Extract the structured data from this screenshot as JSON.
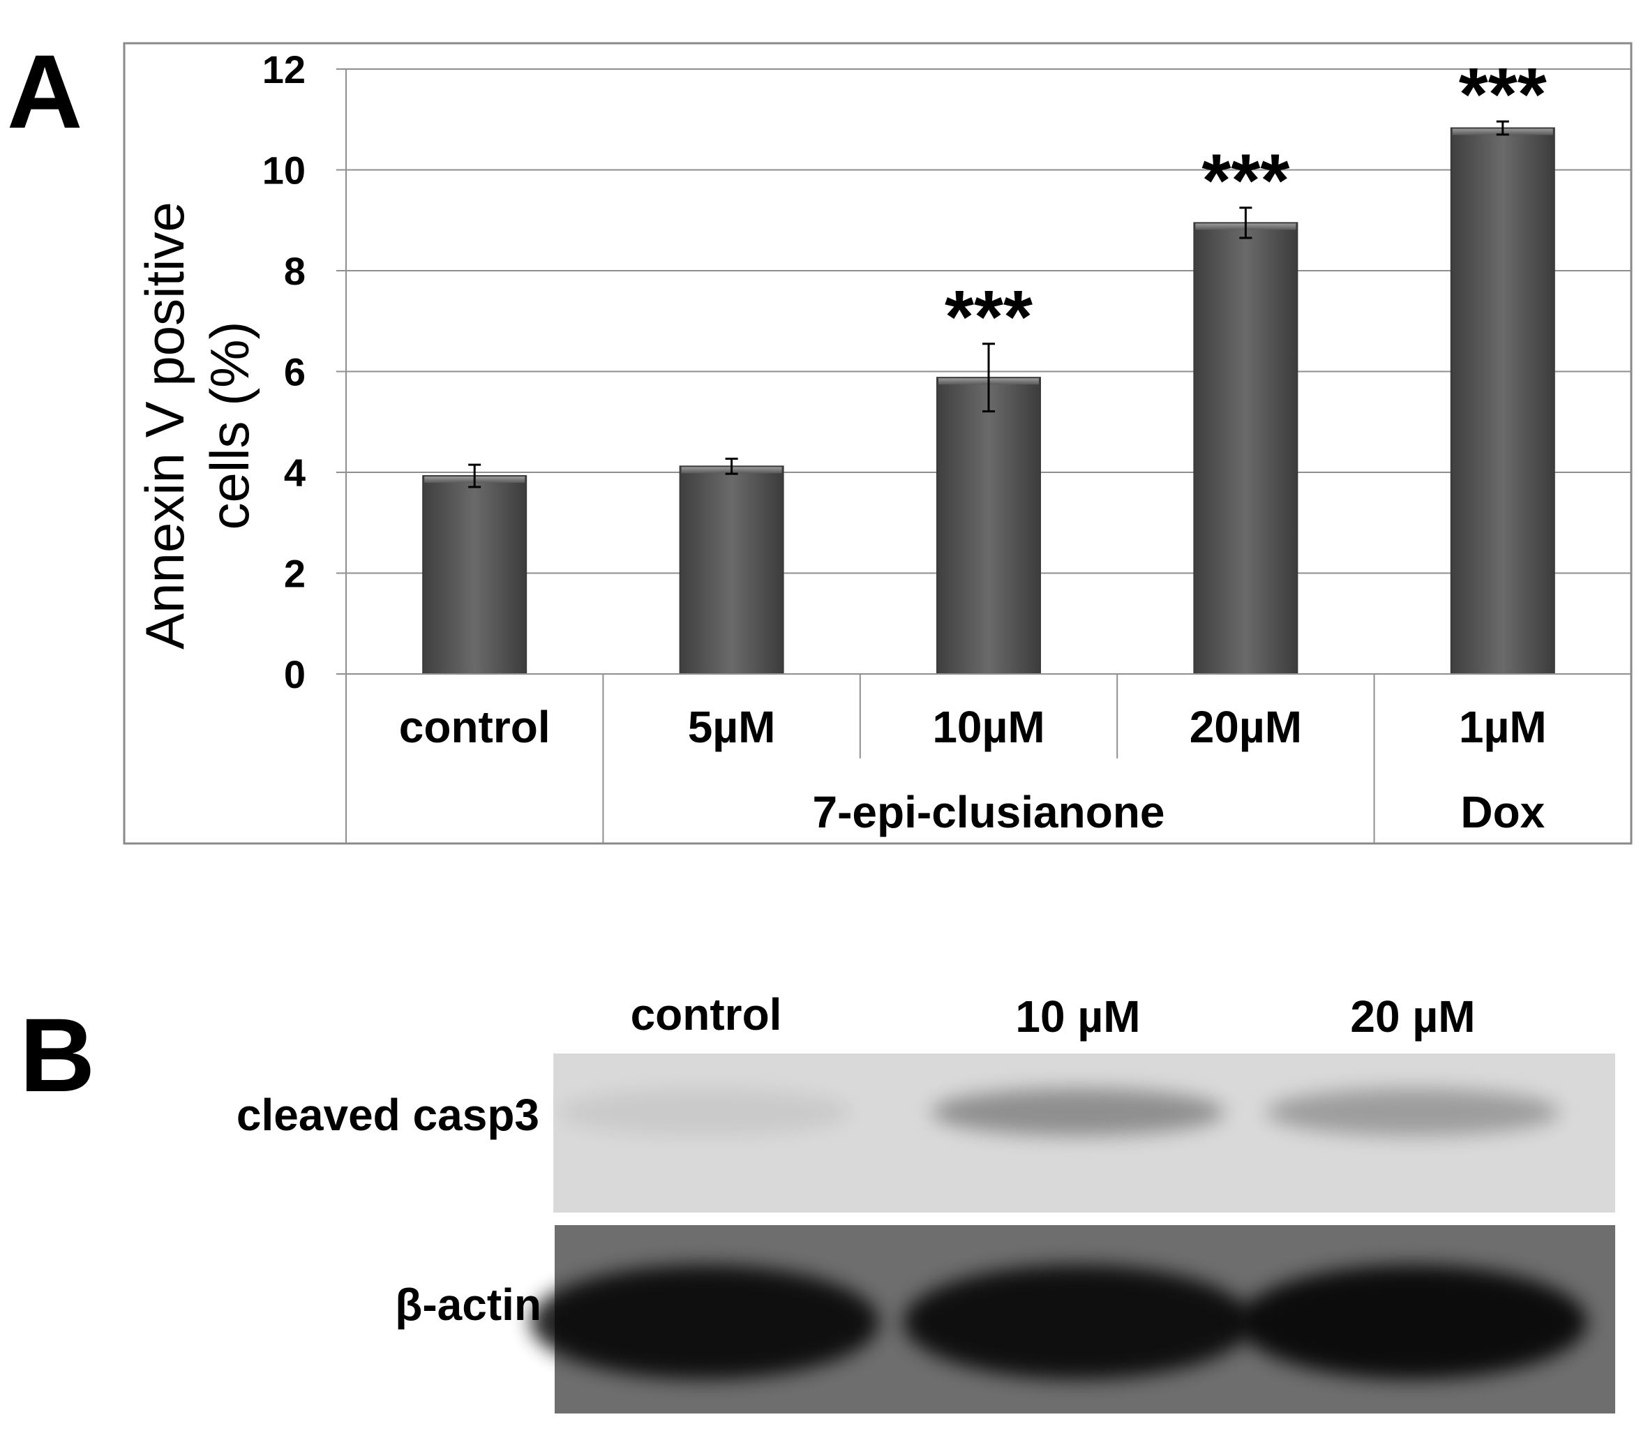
{
  "panel_a": {
    "letter": "A"
  },
  "panel_b": {
    "letter": "B",
    "lane_labels": [
      "control",
      "10 µM",
      "20 µM"
    ],
    "row_labels": [
      "cleaved casp3",
      "β-actin"
    ],
    "bands": {
      "cleaved_casp3": [
        0.12,
        0.62,
        0.5
      ],
      "beta_actin": [
        0.95,
        0.95,
        0.98
      ]
    }
  },
  "chart_data": {
    "type": "bar",
    "title": "",
    "xlabel": "",
    "ylabel": "Annexin V positive cells (%)",
    "ylabel_lines": [
      "Annexin V positive",
      "cells (%)"
    ],
    "ylim": [
      0,
      12
    ],
    "yticks": [
      "0",
      "2",
      "4",
      "6",
      "8",
      "10",
      "12"
    ],
    "grid": true,
    "categories": [
      "control",
      "5µM",
      "10µM",
      "20µM",
      "1µM"
    ],
    "values": [
      3.93,
      4.12,
      5.88,
      8.95,
      10.83
    ],
    "errors": [
      0.22,
      0.15,
      0.67,
      0.3,
      0.13
    ],
    "significance": [
      "",
      "",
      "***",
      "***",
      "***"
    ],
    "groups": [
      {
        "label": "",
        "start": 0,
        "end": 0
      },
      {
        "label": "7-epi-clusianone",
        "start": 1,
        "end": 3
      },
      {
        "label": "Dox",
        "start": 4,
        "end": 4
      }
    ],
    "colors": {
      "bar": "#5f5f5f",
      "bar_edge": "#3a3a3a"
    }
  }
}
